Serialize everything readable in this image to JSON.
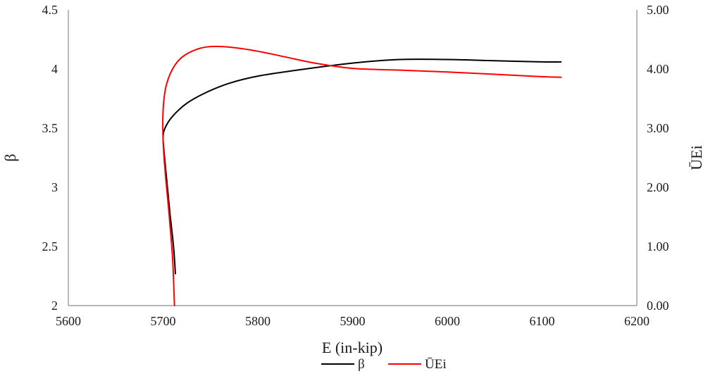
{
  "chart_data": {
    "type": "line",
    "title": "",
    "xlabel": "E (in-kip)",
    "ylabel": "β",
    "y2label": "ŪEi",
    "xlim": [
      5600,
      6200
    ],
    "ylim": [
      2,
      4.5
    ],
    "y2lim": [
      0,
      5
    ],
    "x_ticks": [
      "5600",
      "5700",
      "5800",
      "5900",
      "6000",
      "6100",
      "6200"
    ],
    "y_ticks": [
      "2",
      "2.5",
      "3",
      "3.5",
      "4",
      "4.5"
    ],
    "y2_ticks": [
      "0.00",
      "1.00",
      "2.00",
      "3.00",
      "4.00",
      "5.00"
    ],
    "grid": false,
    "legend_position": "bottom",
    "series": [
      {
        "name": "β",
        "axis": "left",
        "color": "#000000",
        "points": [
          [
            5713,
            2.27
          ],
          [
            5711,
            2.5
          ],
          [
            5707,
            2.8
          ],
          [
            5704,
            3.05
          ],
          [
            5701,
            3.3
          ],
          [
            5700,
            3.42
          ],
          [
            5702,
            3.5
          ],
          [
            5710,
            3.6
          ],
          [
            5725,
            3.71
          ],
          [
            5745,
            3.8
          ],
          [
            5770,
            3.88
          ],
          [
            5800,
            3.94
          ],
          [
            5850,
            4.0
          ],
          [
            5900,
            4.05
          ],
          [
            5950,
            4.08
          ],
          [
            6000,
            4.08
          ],
          [
            6050,
            4.07
          ],
          [
            6100,
            4.06
          ],
          [
            6120,
            4.06
          ]
        ]
      },
      {
        "name": "ŪEi",
        "axis": "right",
        "color": "#ff0000",
        "points": [
          [
            5712,
            0.0
          ],
          [
            5710,
            0.8
          ],
          [
            5706,
            1.6
          ],
          [
            5702,
            2.3
          ],
          [
            5700,
            2.8
          ],
          [
            5700,
            3.3
          ],
          [
            5703,
            3.7
          ],
          [
            5710,
            4.0
          ],
          [
            5720,
            4.2
          ],
          [
            5735,
            4.33
          ],
          [
            5750,
            4.38
          ],
          [
            5770,
            4.37
          ],
          [
            5800,
            4.3
          ],
          [
            5830,
            4.2
          ],
          [
            5860,
            4.1
          ],
          [
            5900,
            4.01
          ],
          [
            5950,
            3.98
          ],
          [
            6000,
            3.95
          ],
          [
            6050,
            3.91
          ],
          [
            6100,
            3.87
          ],
          [
            6120,
            3.86
          ]
        ]
      }
    ]
  }
}
